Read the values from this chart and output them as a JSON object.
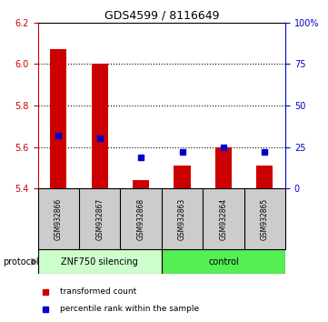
{
  "title": "GDS4599 / 8116649",
  "samples": [
    "GSM932866",
    "GSM932867",
    "GSM932868",
    "GSM932863",
    "GSM932864",
    "GSM932865"
  ],
  "bar_bottom": 5.4,
  "bar_tops": [
    6.07,
    6.0,
    5.44,
    5.51,
    5.6,
    5.51
  ],
  "percentile_values": [
    5.655,
    5.64,
    5.55,
    5.575,
    5.6,
    5.575
  ],
  "ylim_left": [
    5.4,
    6.2
  ],
  "ylim_right": [
    0,
    100
  ],
  "yticks_left": [
    5.4,
    5.6,
    5.8,
    6.0,
    6.2
  ],
  "yticks_right": [
    0,
    25,
    50,
    75,
    100
  ],
  "ytick_labels_right": [
    "0",
    "25",
    "50",
    "75",
    "100%"
  ],
  "gridline_y": [
    5.6,
    5.8,
    6.0
  ],
  "bar_color": "#cc0000",
  "blue_color": "#0000cc",
  "left_axis_color": "#cc0000",
  "right_axis_color": "#0000cc",
  "group1_label": "ZNF750 silencing",
  "group2_label": "control",
  "group_bg_color": "#cccccc",
  "protocol_label": "protocol",
  "legend_red_label": "transformed count",
  "legend_blue_label": "percentile rank within the sample",
  "group1_color": "#ccffcc",
  "group2_color": "#55ee55",
  "bar_width": 0.4
}
